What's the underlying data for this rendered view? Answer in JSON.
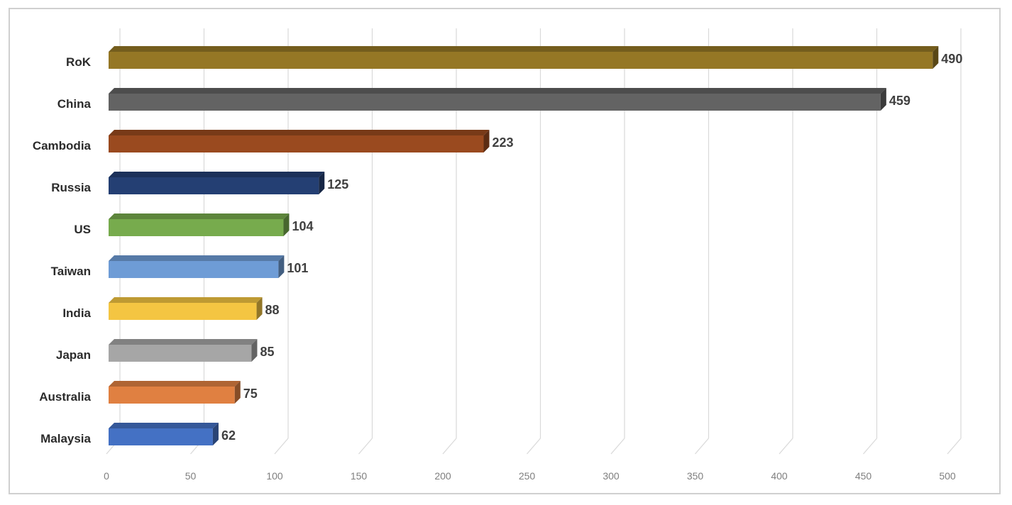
{
  "chart_data": {
    "type": "bar",
    "orientation": "horizontal",
    "style": "3d",
    "categories": [
      "RoK",
      "China",
      "Cambodia",
      "Russia",
      "US",
      "Taiwan",
      "India",
      "Japan",
      "Australia",
      "Malaysia"
    ],
    "values": [
      490,
      459,
      223,
      125,
      104,
      101,
      88,
      85,
      75,
      62
    ],
    "colors": [
      "#957725",
      "#636363",
      "#9A4A1F",
      "#243F73",
      "#77AB4D",
      "#6E9CD6",
      "#F4C542",
      "#A6A6A6",
      "#E08041",
      "#4471C4"
    ],
    "title": "",
    "xlabel": "",
    "ylabel": "",
    "xlim": [
      0,
      500
    ],
    "xticks": [
      0,
      50,
      100,
      150,
      200,
      250,
      300,
      350,
      400,
      450,
      500
    ],
    "grid": true,
    "legend": "none",
    "data_labels": true
  }
}
